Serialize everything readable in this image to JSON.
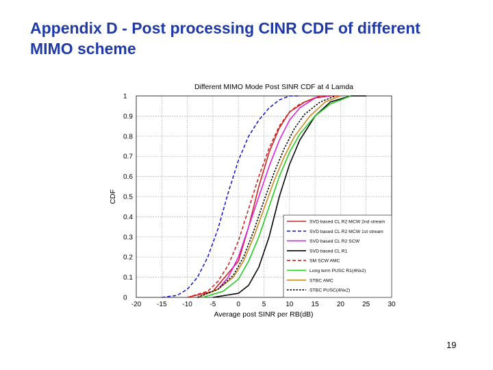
{
  "slide": {
    "title_line1": "Appendix D - Post processing CINR CDF of different",
    "title_line2": "MIMO scheme",
    "page_number": "19"
  },
  "chart_data": {
    "type": "line",
    "title": "Different MIMO Mode Post SINR CDF at 4 Lamda",
    "xlabel": "Average post SINR per RB(dB)",
    "ylabel": "CDF",
    "xlim": [
      -20,
      30
    ],
    "ylim": [
      0,
      1
    ],
    "xticks": [
      -20,
      -15,
      -10,
      -5,
      0,
      5,
      10,
      15,
      20,
      25,
      30
    ],
    "yticks": [
      0,
      0.1,
      0.2,
      0.3,
      0.4,
      0.5,
      0.6,
      0.7,
      0.8,
      0.9,
      1
    ],
    "grid": true,
    "legend_position": "bottom-right",
    "series": [
      {
        "name": "SVD based CL R2 MCW 2nd stream",
        "color": "#cc2222",
        "dash": "solid",
        "x": [
          -10,
          -5,
          0,
          2,
          4,
          6,
          8,
          10,
          13,
          16,
          20
        ],
        "y": [
          0,
          0.03,
          0.18,
          0.35,
          0.55,
          0.72,
          0.84,
          0.92,
          0.97,
          1.0,
          1.0
        ]
      },
      {
        "name": "SVD based CL R2 MCW 1st stream",
        "color": "#1a1acc",
        "dash": "dash",
        "x": [
          -15,
          -12,
          -10,
          -8,
          -6,
          -4,
          -2,
          0,
          2,
          4,
          6,
          8,
          10,
          12
        ],
        "y": [
          0,
          0.01,
          0.04,
          0.1,
          0.2,
          0.34,
          0.52,
          0.68,
          0.8,
          0.88,
          0.94,
          0.98,
          1.0,
          1.0
        ]
      },
      {
        "name": "SVD based CL R2 SCW",
        "color": "#e020e0",
        "dash": "solid",
        "x": [
          -8,
          -4,
          -2,
          0,
          2,
          4,
          6,
          8,
          10,
          12,
          15,
          18
        ],
        "y": [
          0,
          0.04,
          0.1,
          0.2,
          0.35,
          0.5,
          0.65,
          0.78,
          0.88,
          0.94,
          0.99,
          1.0
        ]
      },
      {
        "name": "SVD based CL R1",
        "color": "#000000",
        "dash": "solid",
        "x": [
          -5,
          0,
          2,
          4,
          6,
          8,
          10,
          12,
          15,
          18,
          22,
          25
        ],
        "y": [
          0,
          0.02,
          0.06,
          0.15,
          0.3,
          0.5,
          0.66,
          0.78,
          0.9,
          0.97,
          1.0,
          1.0
        ]
      },
      {
        "name": "SM SCW AMC",
        "color": "#cc2222",
        "dash": "dash",
        "x": [
          -10,
          -6,
          -4,
          -2,
          0,
          2,
          4,
          6,
          8,
          10,
          12,
          15,
          18
        ],
        "y": [
          0,
          0.03,
          0.08,
          0.16,
          0.28,
          0.44,
          0.6,
          0.74,
          0.85,
          0.92,
          0.96,
          0.99,
          1.0
        ]
      },
      {
        "name": "Long term PUSC R1(4Nx2)",
        "color": "#22cc22",
        "dash": "solid",
        "x": [
          -7,
          -3,
          0,
          2,
          4,
          6,
          8,
          10,
          12,
          15,
          18,
          22
        ],
        "y": [
          0,
          0.03,
          0.09,
          0.18,
          0.3,
          0.45,
          0.6,
          0.72,
          0.81,
          0.9,
          0.96,
          1.0
        ]
      },
      {
        "name": "STBC AMC",
        "color": "#c98a20",
        "dash": "solid",
        "x": [
          -8,
          -4,
          -1,
          1,
          3,
          5,
          7,
          9,
          11,
          14,
          17,
          20
        ],
        "y": [
          0,
          0.04,
          0.1,
          0.18,
          0.3,
          0.44,
          0.58,
          0.7,
          0.8,
          0.9,
          0.97,
          1.0
        ]
      },
      {
        "name": "STBC PUSC(4Nx2)",
        "color": "#000000",
        "dash": "shortdash",
        "x": [
          -8,
          -4,
          -1,
          1,
          3,
          5,
          7,
          9,
          11,
          13,
          16,
          19
        ],
        "y": [
          0,
          0.04,
          0.11,
          0.2,
          0.33,
          0.48,
          0.62,
          0.74,
          0.84,
          0.91,
          0.97,
          1.0
        ]
      }
    ]
  }
}
